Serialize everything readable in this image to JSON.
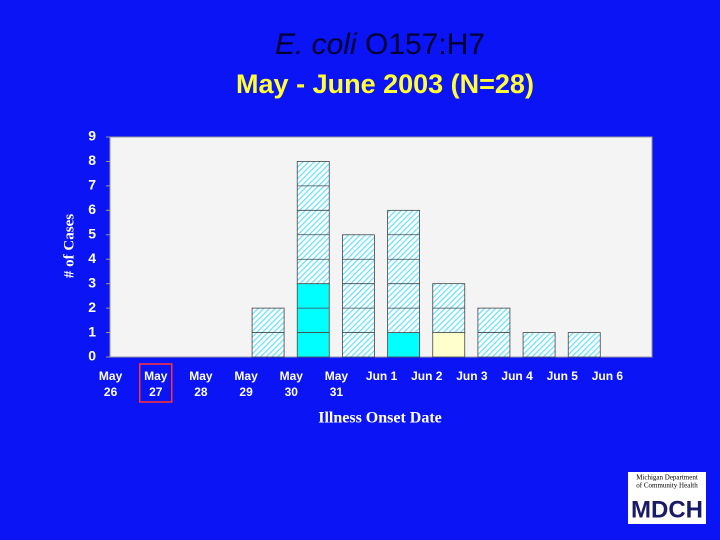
{
  "chart_data": {
    "type": "bar",
    "stacked": true,
    "title_italic": "E. coli",
    "title": "O157:H7",
    "subtitle": "May - June 2003 (N=28)",
    "ylabel": "# of Cases",
    "xlabel": "Illness Onset Date",
    "categories": [
      "May 26",
      "May 27",
      "May 28",
      "May 29",
      "May 30",
      "May 31",
      "Jun 1",
      "Jun 2",
      "Jun 3",
      "Jun 4",
      "Jun 5",
      "Jun 6"
    ],
    "highlight_category": 1,
    "series": [
      {
        "color": "#00ffff",
        "values": [
          0,
          0,
          0,
          0,
          3,
          0,
          1,
          0,
          0,
          0,
          0,
          0
        ]
      },
      {
        "color": "#ffffcc",
        "values": [
          0,
          0,
          0,
          0,
          0,
          0,
          0,
          1,
          0,
          0,
          0,
          0
        ]
      },
      {
        "color": "#66e0ff",
        "pattern": "hatch",
        "values": [
          0,
          0,
          0,
          2,
          5,
          5,
          5,
          2,
          2,
          1,
          1,
          0
        ]
      }
    ],
    "ylim": [
      0,
      9
    ],
    "yticks": [
      0,
      1,
      2,
      3,
      4,
      5,
      6,
      7,
      8,
      9
    ],
    "logo": {
      "line1": "Michigan Department",
      "line2": "of Community Health",
      "text": "MDCH"
    }
  }
}
